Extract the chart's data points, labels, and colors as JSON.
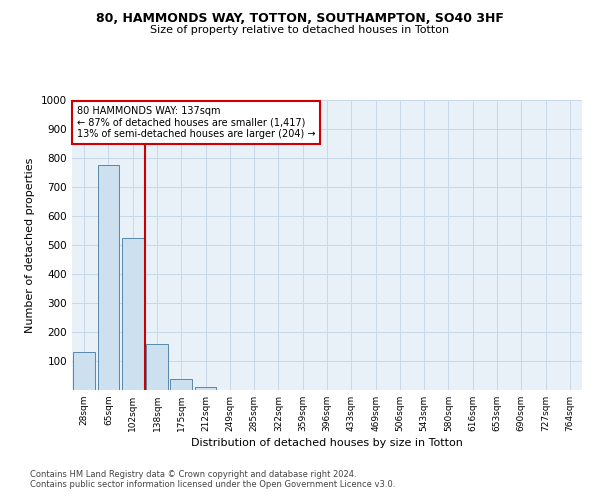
{
  "title": "80, HAMMONDS WAY, TOTTON, SOUTHAMPTON, SO40 3HF",
  "subtitle": "Size of property relative to detached houses in Totton",
  "xlabel": "Distribution of detached houses by size in Totton",
  "ylabel": "Number of detached properties",
  "bar_labels": [
    "28sqm",
    "65sqm",
    "102sqm",
    "138sqm",
    "175sqm",
    "212sqm",
    "249sqm",
    "285sqm",
    "322sqm",
    "359sqm",
    "396sqm",
    "433sqm",
    "469sqm",
    "506sqm",
    "543sqm",
    "580sqm",
    "616sqm",
    "653sqm",
    "690sqm",
    "727sqm",
    "764sqm"
  ],
  "bar_values": [
    130,
    775,
    525,
    160,
    37,
    12,
    0,
    0,
    0,
    0,
    0,
    0,
    0,
    0,
    0,
    0,
    0,
    0,
    0,
    0,
    0
  ],
  "bar_color": "#cce0f0",
  "bar_edgecolor": "#5588aa",
  "vline_x": 2.5,
  "vline_color": "#cc0000",
  "ylim": [
    0,
    1000
  ],
  "yticks": [
    0,
    100,
    200,
    300,
    400,
    500,
    600,
    700,
    800,
    900,
    1000
  ],
  "annotation_title": "80 HAMMONDS WAY: 137sqm",
  "annotation_line1": "← 87% of detached houses are smaller (1,417)",
  "annotation_line2": "13% of semi-detached houses are larger (204) →",
  "annotation_color": "#cc0000",
  "grid_color": "#c8d8e8",
  "bg_color": "#e8f0f8",
  "footer_line1": "Contains HM Land Registry data © Crown copyright and database right 2024.",
  "footer_line2": "Contains public sector information licensed under the Open Government Licence v3.0."
}
